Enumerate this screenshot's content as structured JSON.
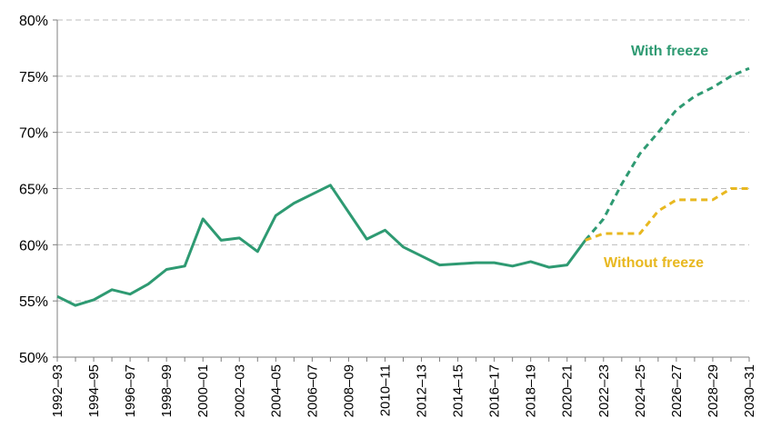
{
  "chart_data": {
    "type": "line",
    "title": "",
    "xlabel": "",
    "ylabel": "",
    "ylim": [
      50,
      80
    ],
    "y_ticks": [
      "50%",
      "55%",
      "60%",
      "65%",
      "70%",
      "75%",
      "80%"
    ],
    "x_tick_labels": [
      "1992–93",
      "1994–95",
      "1996–97",
      "1998–99",
      "2000–01",
      "2002–03",
      "2004–05",
      "2006–07",
      "2008–09",
      "2010–11",
      "2012–13",
      "2014–15",
      "2016–17",
      "2018–19",
      "2020–21",
      "2022–23",
      "2024–25",
      "2026–27",
      "2028–29",
      "2030–31"
    ],
    "grid": "horizontal dashed",
    "legend": "none",
    "series": [
      {
        "name": "",
        "style": "solid",
        "color": "#2e9a72",
        "x": [
          "1992–93",
          "1993–94",
          "1994–95",
          "1995–96",
          "1996–97",
          "1997–98",
          "1998–99",
          "1999–00",
          "2000–01",
          "2001–02",
          "2002–03",
          "2003–04",
          "2004–05",
          "2005–06",
          "2006–07",
          "2007–08",
          "2008–09",
          "2009–10",
          "2010–11",
          "2011–12",
          "2012–13",
          "2013–14",
          "2014–15",
          "2015–16",
          "2016–17",
          "2017–18",
          "2018–19",
          "2019–20",
          "2020–21",
          "2021–22"
        ],
        "values": [
          55.4,
          54.6,
          55.1,
          56.0,
          55.6,
          56.5,
          57.8,
          58.1,
          62.3,
          60.4,
          60.6,
          59.4,
          62.6,
          63.7,
          64.5,
          65.3,
          62.9,
          60.5,
          61.3,
          59.8,
          59.0,
          58.2,
          58.3,
          58.4,
          58.4,
          58.1,
          58.5,
          58.0,
          58.2,
          60.4
        ]
      },
      {
        "name": "With freeze",
        "style": "dashed",
        "color": "#2e9a72",
        "x": [
          "2021–22",
          "2022–23",
          "2023–24",
          "2024–25",
          "2025–26",
          "2026–27",
          "2027–28",
          "2028–29",
          "2029–30",
          "2030–31"
        ],
        "values": [
          60.4,
          62.3,
          65.4,
          68.1,
          70.0,
          72.0,
          73.2,
          74.0,
          75.0,
          75.7
        ]
      },
      {
        "name": "Without freeze",
        "style": "dashed",
        "color": "#e8b820",
        "x": [
          "2021–22",
          "2022–23",
          "2023–24",
          "2024–25",
          "2025–26",
          "2026–27",
          "2027–28",
          "2028–29",
          "2029–30",
          "2030–31"
        ],
        "values": [
          60.4,
          61.0,
          61.0,
          61.0,
          63.0,
          64.0,
          64.0,
          64.0,
          65.0,
          65.0
        ]
      }
    ],
    "annotations": [
      {
        "text": "With freeze",
        "color": "#2e9a72"
      },
      {
        "text": "Without freeze",
        "color": "#e8b820"
      }
    ]
  }
}
